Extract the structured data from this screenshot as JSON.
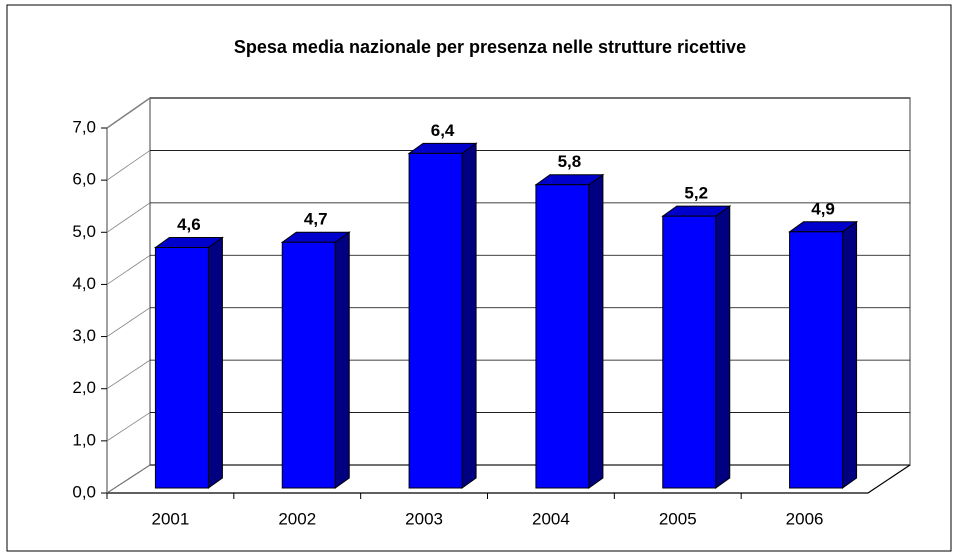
{
  "chart_data": {
    "type": "bar3d",
    "title": "Spesa media nazionale per presenza nelle strutture ricettive",
    "categories": [
      "2001",
      "2002",
      "2003",
      "2004",
      "2005",
      "2006"
    ],
    "values": [
      4.6,
      4.7,
      6.4,
      5.8,
      5.2,
      4.9
    ],
    "value_labels": [
      "4,6",
      "4,7",
      "6,4",
      "5,8",
      "5,2",
      "4,9"
    ],
    "color": "#0000ff",
    "ylim": [
      0,
      7
    ],
    "yticks": [
      {
        "value": 0,
        "label": "0,0"
      },
      {
        "value": 1,
        "label": "1,0"
      },
      {
        "value": 2,
        "label": "2,0"
      },
      {
        "value": 3,
        "label": "3,0"
      },
      {
        "value": 4,
        "label": "4,0"
      },
      {
        "value": 5,
        "label": "5,0"
      },
      {
        "value": 6,
        "label": "6,0"
      },
      {
        "value": 7,
        "label": "7,0"
      }
    ],
    "grid": true
  }
}
